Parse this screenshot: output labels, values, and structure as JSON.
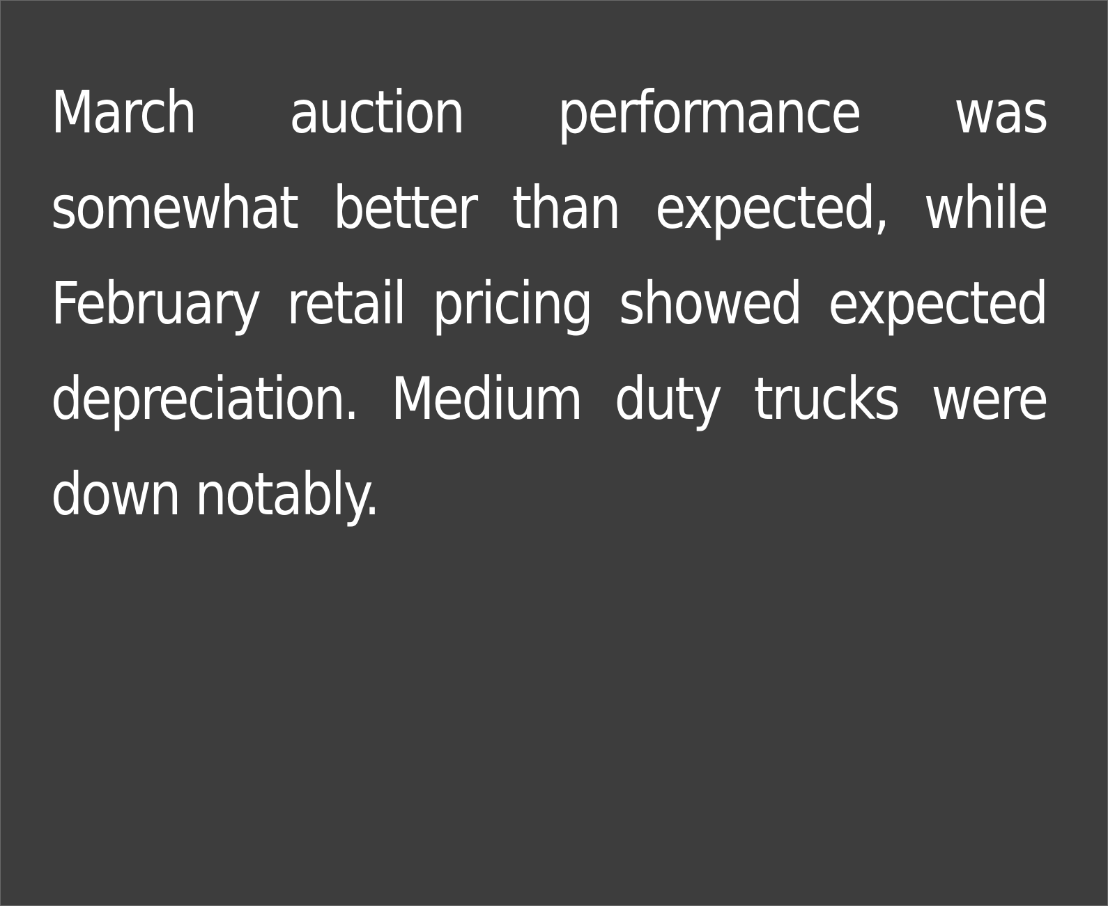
{
  "panel": {
    "background_color": "#3d3d3d",
    "text_color": "#ffffff",
    "paragraph": "March auction performance was somewhat better than expected, while February retail pricing showed expected depreciation. Medium duty trucks were down notably."
  }
}
